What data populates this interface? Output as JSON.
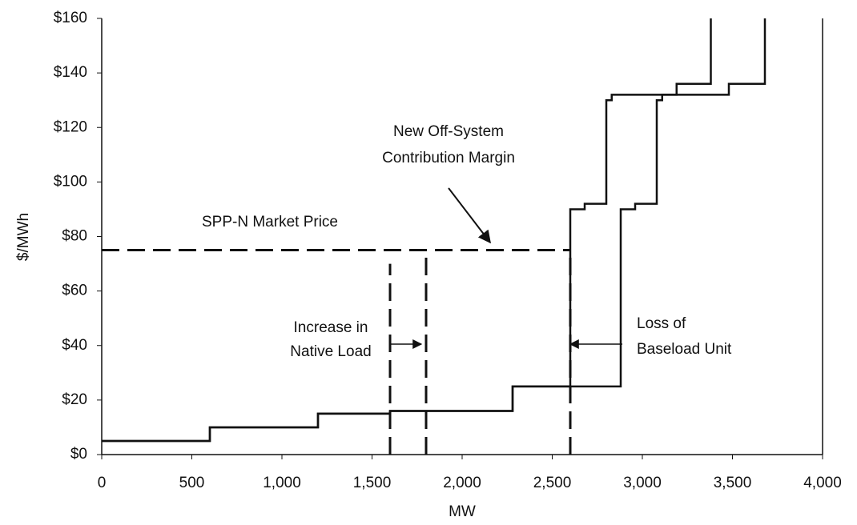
{
  "chart_data": {
    "type": "line",
    "xlabel": "MW",
    "ylabel": "$/MWh",
    "xlim": [
      0,
      4000
    ],
    "ylim": [
      0,
      160
    ],
    "xticks": [
      0,
      500,
      {
        "value": 1000,
        "label": "1,000"
      },
      {
        "value": 1500,
        "label": "1,500"
      },
      {
        "value": 2000,
        "label": "2,000"
      },
      {
        "value": 2500,
        "label": "2,500"
      },
      {
        "value": 3000,
        "label": "3,000"
      },
      {
        "value": 3500,
        "label": "3,500"
      },
      {
        "value": 4000,
        "label": "4,000"
      }
    ],
    "yticks": [
      {
        "value": 0,
        "label": "$0"
      },
      {
        "value": 20,
        "label": "$20"
      },
      {
        "value": 40,
        "label": "$40"
      },
      {
        "value": 60,
        "label": "$60"
      },
      {
        "value": 80,
        "label": "$80"
      },
      {
        "value": 100,
        "label": "$100"
      },
      {
        "value": 120,
        "label": "$120"
      },
      {
        "value": 140,
        "label": "$140"
      },
      {
        "value": 160,
        "label": "$160"
      }
    ],
    "series": [
      {
        "color": "#111111",
        "x": [
          0,
          600,
          600,
          1200,
          1200,
          1600,
          1600,
          2280,
          2280,
          2600,
          2600,
          2680,
          2680,
          2800,
          2800,
          2830,
          2830,
          3190,
          3190,
          3380,
          3380
        ],
        "values": [
          5,
          5,
          10,
          10,
          15,
          15,
          16,
          16,
          25,
          25,
          90,
          90,
          92,
          92,
          130,
          130,
          132,
          132,
          136,
          136,
          160
        ]
      },
      {
        "color": "#111111",
        "x": [
          0,
          600,
          600,
          1200,
          1200,
          1600,
          1600,
          2280,
          2280,
          2880,
          2880,
          2960,
          2960,
          3080,
          3080,
          3110,
          3110,
          3480,
          3480,
          3680,
          3680
        ],
        "values": [
          5,
          5,
          10,
          10,
          15,
          15,
          16,
          16,
          25,
          25,
          90,
          90,
          92,
          92,
          130,
          130,
          132,
          132,
          136,
          136,
          160
        ]
      }
    ],
    "dashed_lines": [
      {
        "color": "#111111",
        "x": [
          0,
          2600
        ],
        "values": [
          75,
          75
        ]
      },
      {
        "color": "#111111",
        "x": [
          1600,
          1600
        ],
        "values": [
          0,
          70
        ]
      },
      {
        "color": "#111111",
        "x": [
          1800,
          1800
        ],
        "values": [
          0,
          75
        ]
      },
      {
        "color": "#111111",
        "x": [
          2600,
          2600
        ],
        "values": [
          0,
          75
        ]
      }
    ],
    "annotations": [
      {
        "text": [
          "SPP-N Market Price"
        ]
      },
      {
        "text": [
          "New Off-System",
          "Contribution Margin"
        ]
      },
      {
        "text": [
          "Increase in",
          "Native Load"
        ]
      },
      {
        "text": [
          "Loss of",
          "Baseload Unit"
        ]
      }
    ]
  }
}
